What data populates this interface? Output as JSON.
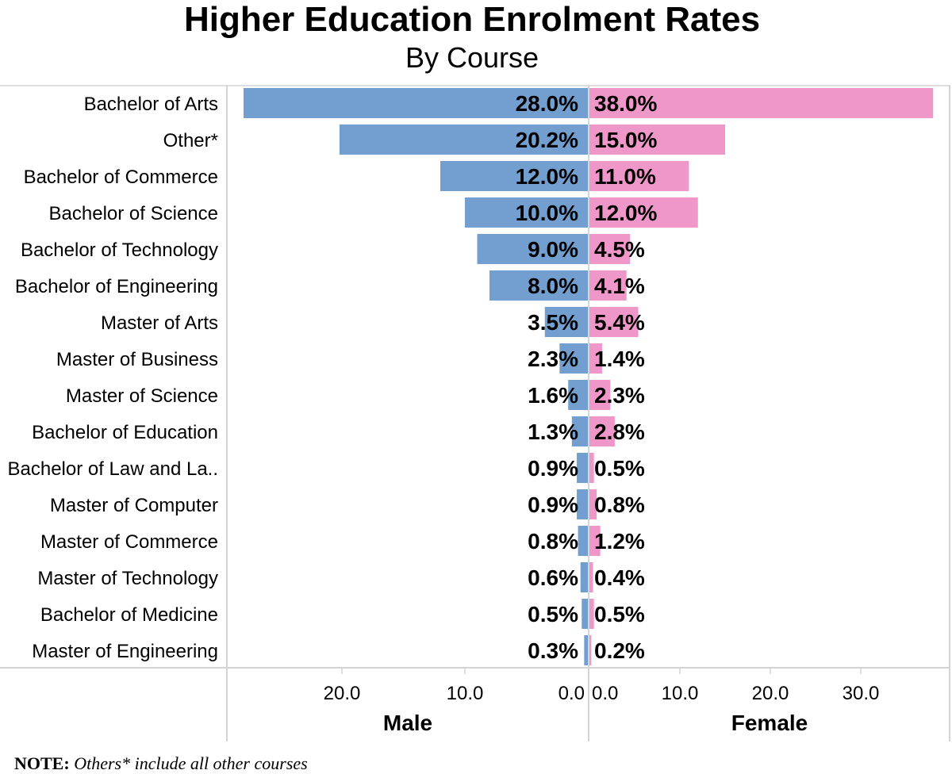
{
  "chart_data": {
    "type": "bar",
    "orientation": "horizontal-butterfly",
    "title": "Higher Education Enrolment Rates",
    "subtitle": "By Course",
    "categories": [
      "Bachelor of Arts",
      "Other*",
      "Bachelor of Commerce",
      "Bachelor of Science",
      "Bachelor of Technology",
      "Bachelor of Engineering",
      "Master of Arts",
      "Master of Business",
      "Master of Science",
      "Bachelor of Education",
      "Bachelor of Law and La..",
      "Master of Computer",
      "Master of Commerce",
      "Master of Technology",
      "Bachelor of Medicine",
      "Master of Engineering"
    ],
    "series": [
      {
        "name": "Male",
        "color": "#729fcf",
        "values": [
          28.0,
          20.2,
          12.0,
          10.0,
          9.0,
          8.0,
          3.5,
          2.3,
          1.6,
          1.3,
          0.9,
          0.9,
          0.8,
          0.6,
          0.5,
          0.3
        ],
        "ticks": [
          "20.0",
          "10.0",
          "0.0"
        ],
        "tick_values": [
          20,
          10,
          0
        ],
        "xlim": [
          0,
          28.5
        ]
      },
      {
        "name": "Female",
        "color": "#f097c9",
        "values": [
          38.0,
          15.0,
          11.0,
          12.0,
          4.5,
          4.1,
          5.4,
          1.4,
          2.3,
          2.8,
          0.5,
          0.8,
          1.2,
          0.4,
          0.5,
          0.2
        ],
        "ticks": [
          "0.0",
          "10.0",
          "20.0",
          "30.0"
        ],
        "tick_values": [
          0,
          10,
          20,
          30
        ],
        "xlim": [
          0,
          39.5
        ]
      }
    ],
    "label_format": "%",
    "grid": false
  },
  "note": {
    "label": "NOTE:",
    "text": "Others* include all other courses"
  }
}
